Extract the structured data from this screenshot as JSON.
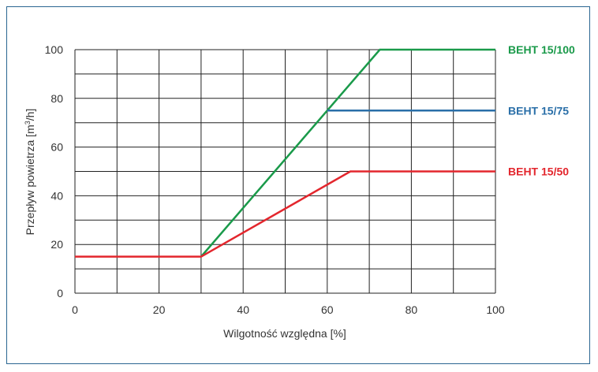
{
  "chart_data": {
    "type": "line",
    "title": "",
    "xlabel": "Wilgotność względna [%]",
    "ylabel_main": "Przepływ powietrza [m",
    "ylabel_sup": "3",
    "ylabel_end": "/h]",
    "xlim": [
      0,
      100
    ],
    "ylim": [
      0,
      100
    ],
    "x_ticks": [
      "0",
      "20",
      "40",
      "60",
      "80",
      "100"
    ],
    "y_ticks": [
      "0",
      "20",
      "40",
      "60",
      "80",
      "100"
    ],
    "grid": true,
    "x_grid_step": 10,
    "y_grid_step": 10,
    "series": [
      {
        "name": "BEHT 15/100",
        "color": "#1a9a4a",
        "points": [
          [
            30,
            15
          ],
          [
            72.5,
            100
          ],
          [
            100,
            100
          ]
        ]
      },
      {
        "name": "BEHT 15/75",
        "color": "#2a6fa8",
        "points": [
          [
            60,
            75
          ],
          [
            100,
            75
          ]
        ]
      },
      {
        "name": "BEHT 15/50",
        "color": "#e3262d",
        "points": [
          [
            0,
            15
          ],
          [
            30,
            15
          ],
          [
            65.5,
            50
          ],
          [
            100,
            50
          ]
        ]
      }
    ]
  }
}
